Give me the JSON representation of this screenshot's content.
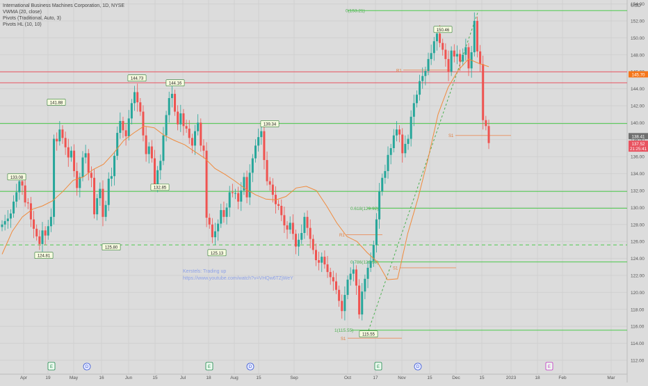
{
  "indicators": {
    "title": "International Business Machines Corporation, 1D, NYSE",
    "vwma": "VWMA (20, close)",
    "pivots": "Pivots (Traditional, Auto, 3)",
    "pivots_hl": "Pivots HL (10, 10)"
  },
  "watermark": {
    "line1": "Kerstels: Trading up",
    "line2": "https://www.youtube.com/watch?v=VHQw6TZjWeY"
  },
  "currency_label": "USD",
  "price_badges": [
    {
      "text": "145.70",
      "color": "#f5761a",
      "price": 145.7
    },
    {
      "text": "138.41",
      "color": "#6f6f6f",
      "price": 138.41
    },
    {
      "text": "137.52",
      "color": "#e8525f",
      "price": 137.52
    },
    {
      "text": "21:25:41",
      "color": "#e8525f",
      "price": 136.95
    }
  ],
  "colors": {
    "up": "#26a69a",
    "down": "#ef5350",
    "vwma": "#f08a3c",
    "green_line": "#4cc94c",
    "red_line": "#e8525f",
    "pivot_line": "#e8976a"
  },
  "chart_data": {
    "type": "candlestick",
    "title": "International Business Machines Corporation, 1D, NYSE",
    "ylabel": "USD",
    "ylim": [
      111,
      154
    ],
    "y_ticks": [
      112,
      114,
      116,
      118,
      120,
      122,
      124,
      126,
      128,
      130,
      132,
      134,
      136,
      138,
      140,
      142,
      144,
      146,
      148,
      150,
      152,
      154
    ],
    "x_ticks": [
      "Apr",
      "19",
      "May",
      "16",
      "Jun",
      "15",
      "Jul",
      "18",
      "Aug",
      "15",
      "Sep",
      "Oct",
      "17",
      "Nov",
      "15",
      "Dec",
      "15",
      "2023",
      "18",
      "Feb",
      "Mar"
    ],
    "close_series": [
      128.0,
      128.4,
      128.7,
      129.3,
      130.7,
      131.8,
      133.1,
      132.6,
      130.6,
      130.5,
      128.6,
      127.5,
      126.6,
      125.7,
      127.3,
      126.7,
      127.8,
      128.9,
      138.1,
      137.8,
      139.2,
      138.2,
      137.1,
      135.9,
      136.7,
      134.3,
      132.3,
      133.6,
      135.9,
      136.4,
      134.1,
      133.5,
      129.2,
      131.1,
      132.2,
      128.9,
      130.3,
      133.4,
      133.7,
      136.1,
      138.8,
      140.2,
      139.1,
      138.4,
      140.5,
      142.3,
      143.6,
      142.4,
      141.3,
      138.5,
      136.3,
      137.2,
      135.8,
      132.7,
      134.4,
      135.5,
      138.5,
      140.9,
      142.9,
      143.4,
      141.3,
      139.8,
      141.1,
      139.6,
      139.3,
      138.2,
      137.3,
      139.0,
      140.0,
      137.3,
      136.7,
      128.8,
      128.0,
      126.5,
      127.2,
      128.1,
      129.7,
      128.9,
      130.0,
      131.8,
      131.7,
      131.7,
      130.7,
      132.0,
      133.6,
      131.2,
      134.1,
      135.8,
      137.3,
      138.3,
      139.0,
      135.6,
      133.1,
      132.7,
      131.5,
      130.4,
      130.2,
      129.1,
      127.9,
      127.4,
      128.2,
      126.9,
      125.4,
      126.2,
      127.0,
      128.9,
      127.6,
      126.3,
      125.0,
      123.8,
      123.5,
      124.2,
      123.3,
      122.4,
      121.8,
      121.3,
      120.3,
      119.0,
      117.8,
      119.7,
      121.5,
      122.2,
      122.7,
      120.8,
      117.4,
      120.1,
      121.6,
      122.9,
      123.7,
      125.6,
      128.6,
      131.9,
      133.5,
      134.3,
      136.2,
      137.0,
      138.5,
      139.2,
      138.6,
      136.4,
      137.5,
      138.1,
      140.7,
      142.3,
      143.3,
      144.9,
      145.5,
      146.1,
      147.5,
      148.2,
      149.6,
      150.5,
      149.4,
      148.6,
      147.5,
      146.0,
      148.5,
      147.8,
      148.1,
      147.2,
      148.0,
      148.9,
      146.4,
      148.3,
      152.0,
      148.4,
      146.9,
      140.3,
      139.6,
      137.6
    ],
    "vwma_series": [
      124.5,
      127.2,
      128.9,
      129.8,
      130.2,
      130.8,
      131.9,
      133.2,
      133.6,
      134.5,
      135.1,
      136.4,
      137.9,
      138.8,
      139.6,
      139.4,
      138.5,
      137.9,
      137.4,
      136.6,
      135.8,
      134.6,
      133.9,
      133.1,
      132.2,
      131.5,
      131.0,
      130.9,
      131.3,
      132.3,
      132.5,
      132.0,
      130.2,
      128.2,
      126.6,
      126.0,
      124.7,
      123.6,
      121.5,
      121.6,
      126.9,
      131.0,
      135.7,
      141.0,
      144.2,
      146.2,
      147.5,
      147.0,
      146.6
    ],
    "pivot_highs": [
      {
        "label": "133.08",
        "value": 133.08
      },
      {
        "label": "141.88",
        "value": 141.88
      },
      {
        "label": "144.73",
        "value": 144.73
      },
      {
        "label": "144.16",
        "value": 144.16
      },
      {
        "label": "139.34",
        "value": 139.34
      },
      {
        "label": "150.46",
        "value": 150.46
      }
    ],
    "pivot_lows": [
      {
        "label": "124.81",
        "value": 124.81
      },
      {
        "label": "125.80",
        "value": 125.8
      },
      {
        "label": "132.85",
        "value": 132.85
      },
      {
        "label": "125.13",
        "value": 125.13
      },
      {
        "label": "115.55",
        "value": 115.55
      }
    ],
    "fib_levels": [
      {
        "label": "0(153.21)",
        "value": 153.21
      },
      {
        "label": "0.618(129.92)",
        "value": 129.92
      },
      {
        "label": "0.786(123.59)",
        "value": 123.59
      },
      {
        "label": "1(115.55)",
        "value": 115.55
      }
    ],
    "horizontal_levels": [
      {
        "value": 146.0,
        "color": "red"
      },
      {
        "value": 144.7,
        "color": "red"
      },
      {
        "value": 139.9,
        "color": "green"
      },
      {
        "value": 131.9,
        "color": "green"
      },
      {
        "value": 125.6,
        "color": "green-dashed"
      }
    ],
    "pivot_points": [
      {
        "label": "R1",
        "value": 146.2
      },
      {
        "label": "S1",
        "value": 138.5
      },
      {
        "label": "R1",
        "value": 126.8
      },
      {
        "label": "S1",
        "value": 122.9
      },
      {
        "label": "S1",
        "value": 114.6
      }
    ],
    "event_markers": [
      {
        "letter": "E",
        "kind": "earnings",
        "date": "Apr 19"
      },
      {
        "letter": "D",
        "kind": "dividend",
        "date": "May 6"
      },
      {
        "letter": "E",
        "kind": "earnings",
        "date": "Jul 18"
      },
      {
        "letter": "D",
        "kind": "dividend",
        "date": "Aug 8"
      },
      {
        "letter": "E",
        "kind": "earnings",
        "date": "Oct 19"
      },
      {
        "letter": "D",
        "kind": "dividend",
        "date": "Nov 9"
      },
      {
        "letter": "E",
        "kind": "earnings-upcoming",
        "date": "Jan 25"
      }
    ],
    "grid": true
  }
}
